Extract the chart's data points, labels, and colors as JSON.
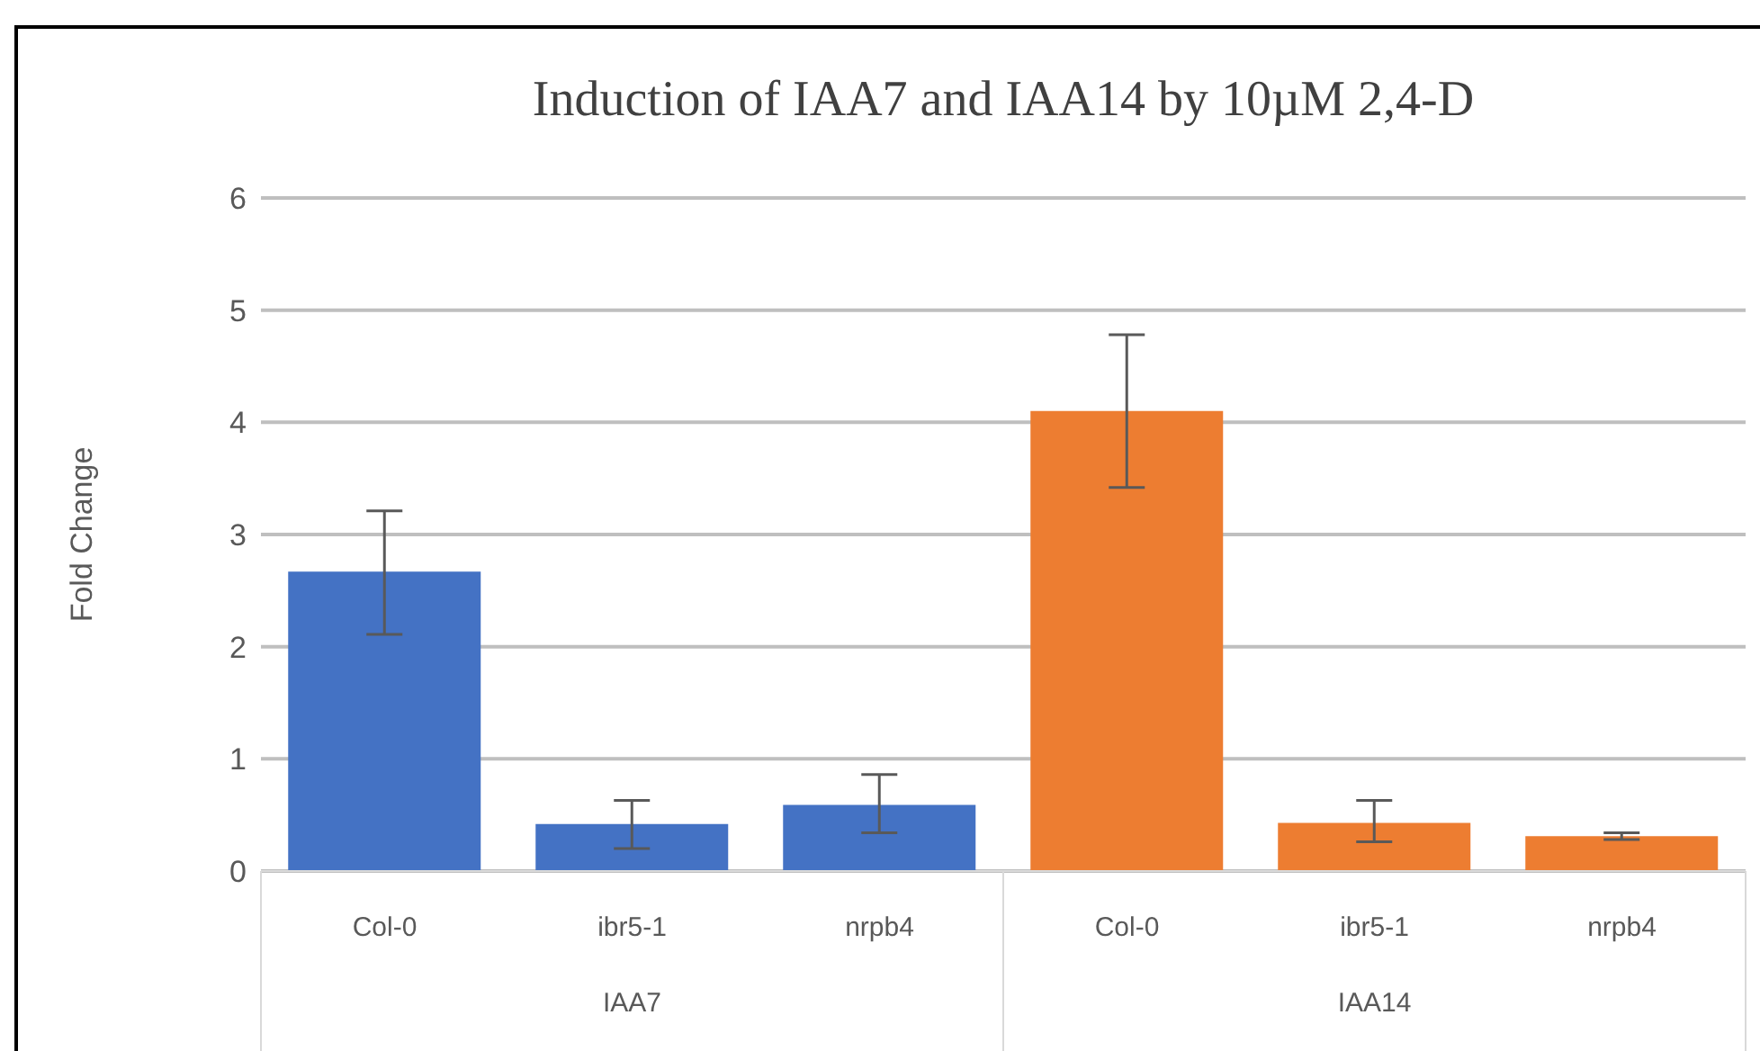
{
  "chart_data": {
    "type": "bar",
    "title": "Induction of IAA7 and IAA14 by 10µM 2,4-D",
    "ylabel": "Fold Change",
    "categories": [
      "Col-0",
      "ibr5-1",
      "nrpb4",
      "Col-0",
      "ibr5-1",
      "nrpb4"
    ],
    "values": [
      2.67,
      0.42,
      0.59,
      4.1,
      0.43,
      0.31
    ],
    "colors": [
      "#4472c4",
      "#4472c4",
      "#4472c4",
      "#ed7d31",
      "#ed7d31",
      "#ed7d31"
    ],
    "errors": [
      [
        2.11,
        3.21
      ],
      [
        0.2,
        0.63
      ],
      [
        0.34,
        0.86
      ],
      [
        3.42,
        4.78
      ],
      [
        0.26,
        0.63
      ],
      [
        0.28,
        0.34
      ]
    ],
    "annotations": [
      "IAA7",
      "IAA14"
    ],
    "ylim": [
      0,
      6
    ],
    "yticks": [
      0,
      1,
      2,
      3,
      4,
      5,
      6
    ],
    "grid": "y",
    "legend": false
  }
}
